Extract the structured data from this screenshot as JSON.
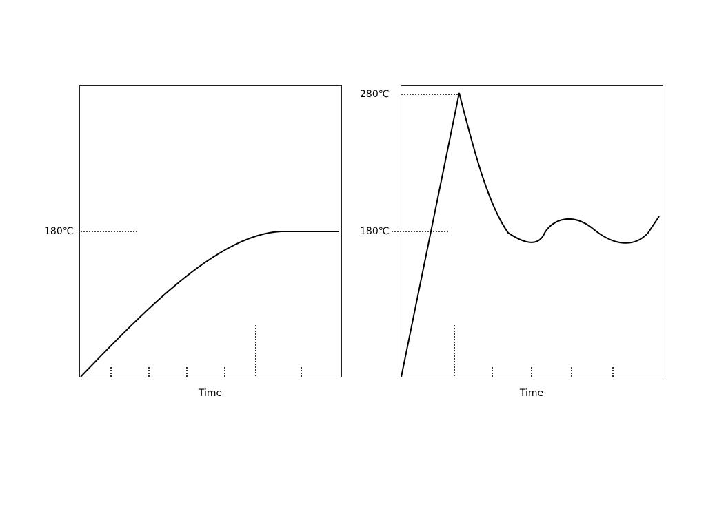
{
  "left_panel": {
    "level_label": "180℃",
    "axis_label": "Time"
  },
  "right_panel": {
    "peak_label": "280℃",
    "level_label": "180℃",
    "axis_label": "Time"
  }
}
